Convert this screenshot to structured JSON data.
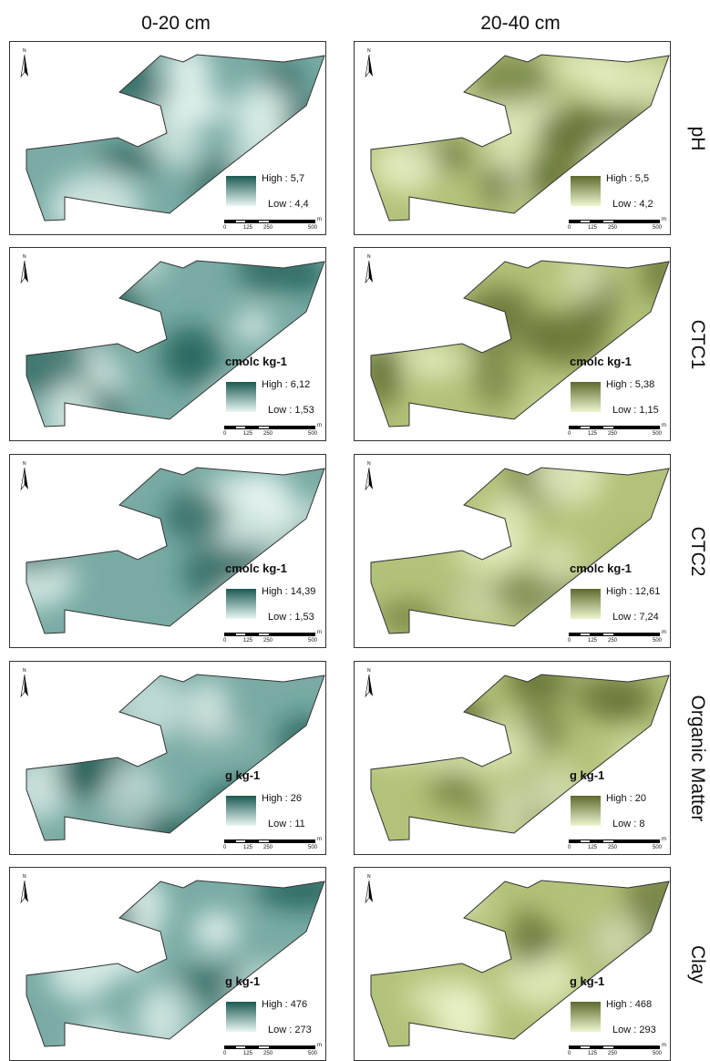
{
  "columns": [
    {
      "label": "0-20 cm",
      "palette": "teal",
      "fill_dark": "#1b5a52",
      "fill_light": "#eaf7f4",
      "mid": "#79aba4"
    },
    {
      "label": "20-40 cm",
      "palette": "olive",
      "fill_dark": "#5d6a2e",
      "fill_light": "#eef6cf",
      "mid": "#b3c27a"
    }
  ],
  "rows": [
    {
      "label": "pH",
      "unit": "",
      "left": {
        "high": "High : 5,7",
        "low": "Low : 4,4"
      },
      "right": {
        "high": "High : 5,5",
        "low": "Low : 4,2"
      }
    },
    {
      "label": "CTC1",
      "unit": "cmolc kg-1",
      "left": {
        "high": "High : 6,12",
        "low": "Low : 1,53"
      },
      "right": {
        "high": "High : 5,38",
        "low": "Low : 1,15"
      }
    },
    {
      "label": "CTC2",
      "unit": "cmolc kg-1",
      "left": {
        "high": "High : 14,39",
        "low": "Low : 1,53"
      },
      "right": {
        "high": "High : 12,61",
        "low": "Low : 7,24"
      }
    },
    {
      "label": "Organic Matter",
      "unit": "g kg-1",
      "left": {
        "high": "High : 26",
        "low": "Low : 11"
      },
      "right": {
        "high": "High : 20",
        "low": "Low : 8"
      }
    },
    {
      "label": "Clay",
      "unit": "g kg-1",
      "left": {
        "high": "High : 476",
        "low": "Low : 273"
      },
      "right": {
        "high": "High : 468",
        "low": "Low : 293"
      }
    }
  ],
  "scale": {
    "ticks": [
      "0",
      "125",
      "250",
      "500"
    ],
    "unit": "m"
  },
  "north_arrow": {
    "icon": "north-arrow-icon",
    "label": "N"
  }
}
